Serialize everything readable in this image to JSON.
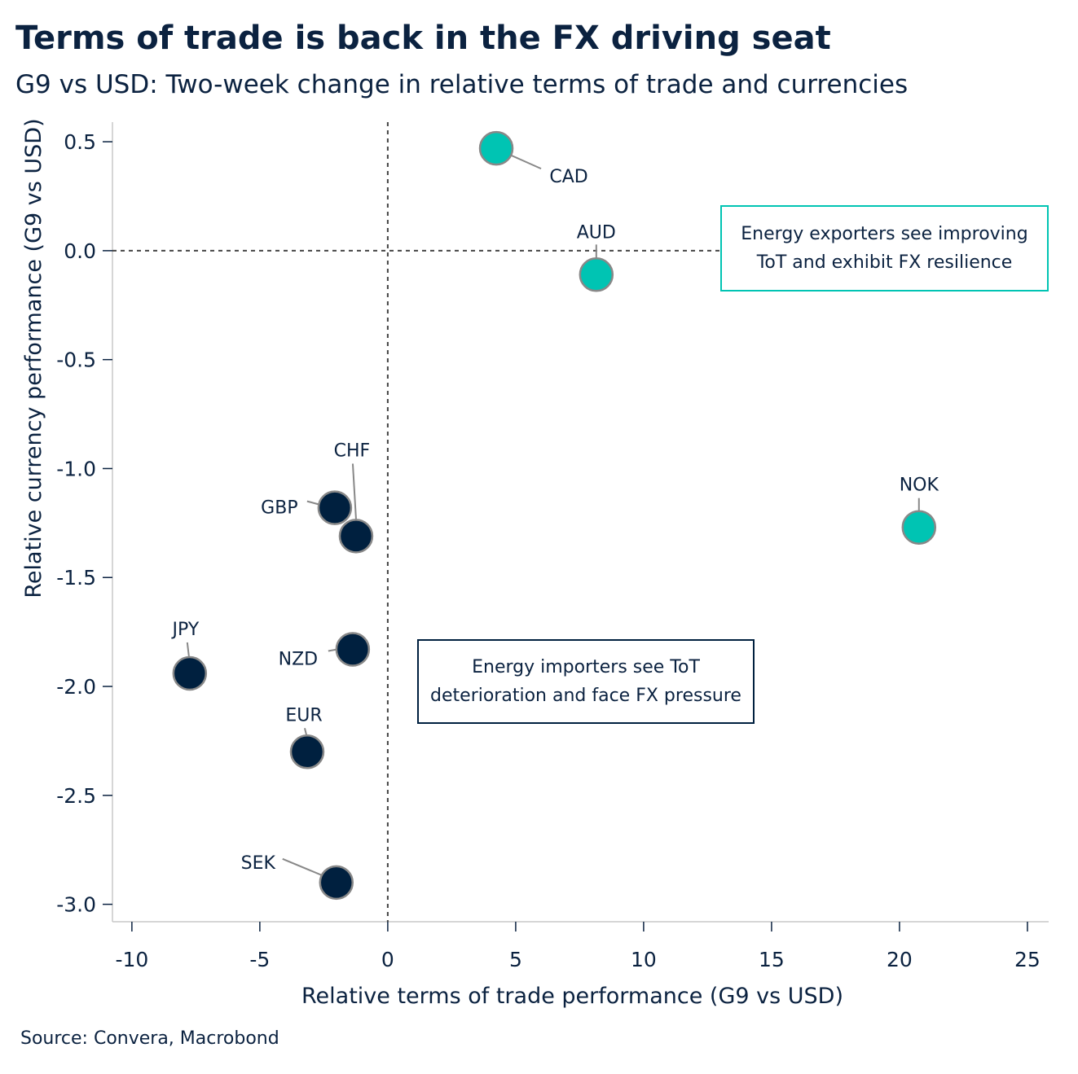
{
  "title": "Terms of trade is back in the FX driving seat",
  "subtitle": "G9 vs USD: Two-week change in relative terms of trade and currencies",
  "source": "Source: Convera, Macrobond",
  "colors": {
    "exporter": "#00c4b3",
    "importer": "#00203f",
    "text": "#0b2240"
  },
  "chart_data": {
    "type": "scatter",
    "xlabel": "Relative terms of trade performance (G9 vs USD)",
    "ylabel": "Relative currency performance (G9 vs USD)",
    "xlim": [
      -10.76,
      25.83
    ],
    "ylim": [
      -3.08,
      0.59
    ],
    "xticks": [
      -10,
      -5,
      0,
      5,
      10,
      15,
      20,
      25
    ],
    "yticks": [
      0.5,
      0.0,
      -0.5,
      -1.0,
      -1.5,
      -2.0,
      -2.5,
      -3.0
    ],
    "ytick_labels": [
      "0.5",
      "0.0",
      "-0.5",
      "-1.0",
      "-1.5",
      "-2.0",
      "-2.5",
      "-3.0"
    ],
    "grid": false,
    "reference_lines": {
      "x": 0,
      "y": 0,
      "style": "dashed"
    },
    "points": [
      {
        "label": "CAD",
        "x": 4.24,
        "y": 0.47,
        "group": "exporter"
      },
      {
        "label": "AUD",
        "x": 8.15,
        "y": -0.11,
        "group": "exporter"
      },
      {
        "label": "NOK",
        "x": 20.76,
        "y": -1.27,
        "group": "exporter"
      },
      {
        "label": "GBP",
        "x": -2.07,
        "y": -1.18,
        "group": "importer"
      },
      {
        "label": "CHF",
        "x": -1.24,
        "y": -1.31,
        "group": "importer"
      },
      {
        "label": "NZD",
        "x": -1.37,
        "y": -1.83,
        "group": "importer"
      },
      {
        "label": "JPY",
        "x": -7.74,
        "y": -1.94,
        "group": "importer"
      },
      {
        "label": "EUR",
        "x": -3.15,
        "y": -2.3,
        "group": "importer"
      },
      {
        "label": "SEK",
        "x": -2.01,
        "y": -2.9,
        "group": "importer"
      }
    ],
    "annotations": [
      {
        "text": "Energy exporters see improving ToT and exhibit FX resilience",
        "group": "exporter"
      },
      {
        "text": "Energy importers see ToT deterioration and face FX pressure",
        "group": "importer"
      }
    ]
  }
}
